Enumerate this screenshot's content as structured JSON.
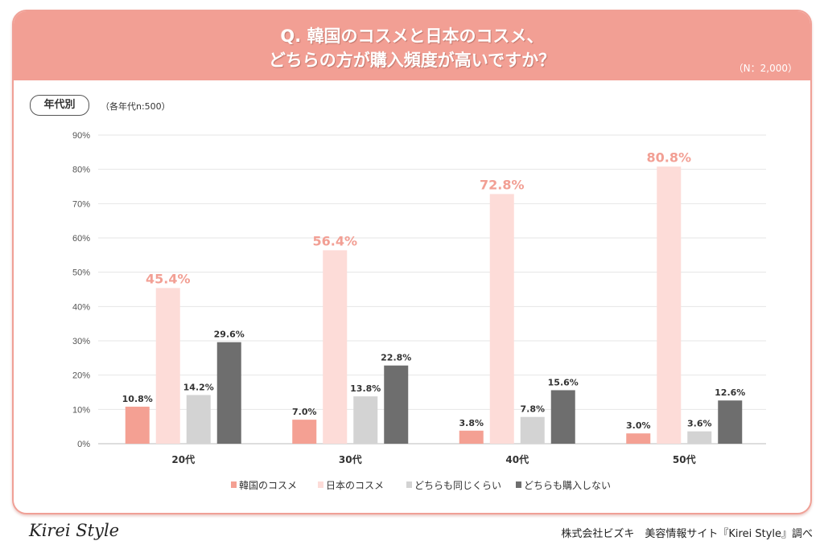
{
  "header": {
    "title_line1": "Q. 韓国のコスメと日本のコスメ、",
    "title_line2": "どちらの方が購入頻度が高いですか？",
    "n_total": "（N：2,000）"
  },
  "segment_tag": "年代別",
  "segment_note": "（各年代n:500）",
  "footer": {
    "logo": "Kirei Style",
    "credit": "株式会社ビズキ　美容情報サイト『Kirei Style』調べ"
  },
  "chart_data": {
    "type": "bar",
    "categories": [
      "20代",
      "30代",
      "40代",
      "50代"
    ],
    "ylim": [
      0,
      90
    ],
    "yticks": [
      0,
      10,
      20,
      30,
      40,
      50,
      60,
      70,
      80,
      90
    ],
    "tick_suffix": "%",
    "grid": true,
    "legend_position": "bottom",
    "series": [
      {
        "name": "韓国のコスメ",
        "values": [
          10.8,
          7.0,
          3.8,
          3.0
        ],
        "color": "#f4a093"
      },
      {
        "name": "日本のコスメ",
        "values": [
          45.4,
          56.4,
          72.8,
          80.8
        ],
        "color": "#fddcd8",
        "label_color": "#f29f94",
        "highlight": true
      },
      {
        "name": "どちらも同じくらい",
        "values": [
          14.2,
          13.8,
          7.8,
          3.6
        ],
        "color": "#d3d3d3"
      },
      {
        "name": "どちらも購入しない",
        "values": [
          29.6,
          22.8,
          15.6,
          12.6
        ],
        "color": "#6e6e6e"
      }
    ]
  }
}
